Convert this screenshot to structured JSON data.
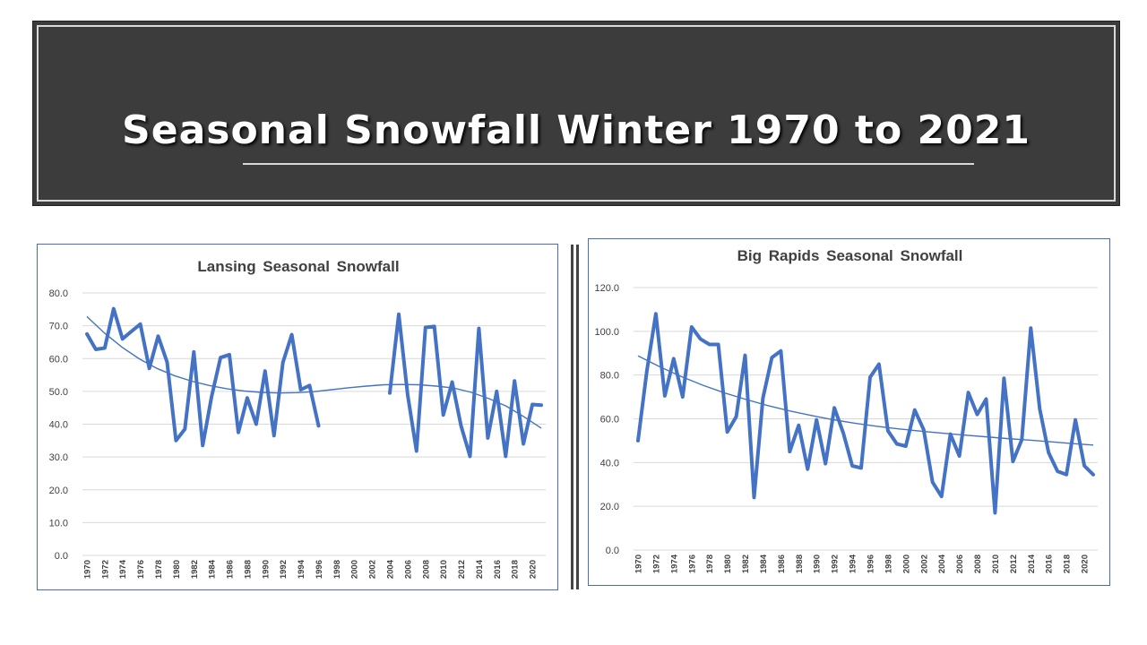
{
  "banner": {
    "title": "Seasonal Snowfall Winter 1970 to 2021"
  },
  "colors": {
    "series": "#4472c4",
    "trend": "#4472c4",
    "grid": "#d9d9d9",
    "banner_bg": "#3c3c3c"
  },
  "chart_data": [
    {
      "type": "line",
      "title": "Lansing Seasonal Snowfall",
      "xlabel": "",
      "ylabel": "",
      "ylim": [
        0,
        80
      ],
      "yticks": [
        "0.0",
        "10.0",
        "20.0",
        "30.0",
        "40.0",
        "50.0",
        "60.0",
        "70.0",
        "80.0"
      ],
      "xtick_labels": [
        "1970",
        "1972",
        "1974",
        "1976",
        "1978",
        "1980",
        "1982",
        "1984",
        "1986",
        "1988",
        "1990",
        "1992",
        "1994",
        "1996",
        "1998",
        "2000",
        "2002",
        "2004",
        "2006",
        "2008",
        "2010",
        "2012",
        "2014",
        "2016",
        "2018",
        "2020"
      ],
      "x": [
        1970,
        1971,
        1972,
        1973,
        1974,
        1975,
        1976,
        1977,
        1978,
        1979,
        1980,
        1981,
        1982,
        1983,
        1984,
        1985,
        1986,
        1987,
        1988,
        1989,
        1990,
        1991,
        1992,
        1993,
        1994,
        1995,
        1996,
        1997,
        1998,
        1999,
        2000,
        2001,
        2002,
        2003,
        2004,
        2005,
        2006,
        2007,
        2008,
        2009,
        2010,
        2011,
        2012,
        2013,
        2014,
        2015,
        2016,
        2017,
        2018,
        2019,
        2020,
        2021
      ],
      "values": [
        67.5,
        62.8,
        63.2,
        75.2,
        66.0,
        68.3,
        70.5,
        57.0,
        66.8,
        58.9,
        35.0,
        38.5,
        62.0,
        33.5,
        48.5,
        60.3,
        61.2,
        37.5,
        48.0,
        40.0,
        56.2,
        36.5,
        58.8,
        67.3,
        50.5,
        51.8,
        39.5,
        null,
        null,
        null,
        null,
        null,
        null,
        null,
        49.5,
        73.5,
        49.0,
        31.8,
        69.5,
        69.8,
        42.8,
        52.8,
        39.5,
        30.2,
        69.2,
        35.8,
        50.0,
        30.2,
        53.2,
        34.0,
        46.0,
        45.8
      ],
      "trend": [
        72.8,
        67.8,
        63.5,
        59.9,
        57.0,
        54.8,
        53.1,
        51.8,
        50.8,
        50.1,
        49.7,
        49.5,
        49.6,
        49.9,
        50.5,
        51.1,
        51.6,
        52.0,
        52.1,
        52.0,
        51.6,
        51.0,
        49.7,
        47.8,
        45.5,
        42.3,
        38.8
      ],
      "grid": true,
      "legend": "none"
    },
    {
      "type": "line",
      "title": "Big Rapids Seasonal Snowfall",
      "xlabel": "",
      "ylabel": "",
      "ylim": [
        0,
        120
      ],
      "yticks": [
        "0.0",
        "20.0",
        "40.0",
        "60.0",
        "80.0",
        "100.0",
        "120.0"
      ],
      "xtick_labels": [
        "1970",
        "1972",
        "1974",
        "1976",
        "1978",
        "1980",
        "1982",
        "1984",
        "1986",
        "1988",
        "1990",
        "1992",
        "1994",
        "1996",
        "1998",
        "2000",
        "2002",
        "2004",
        "2006",
        "2008",
        "2010",
        "2012",
        "2014",
        "2016",
        "2018",
        "2020"
      ],
      "x": [
        1970,
        1971,
        1972,
        1973,
        1974,
        1975,
        1976,
        1977,
        1978,
        1979,
        1980,
        1981,
        1982,
        1983,
        1984,
        1985,
        1986,
        1987,
        1988,
        1989,
        1990,
        1991,
        1992,
        1993,
        1994,
        1995,
        1996,
        1997,
        1998,
        1999,
        2000,
        2001,
        2002,
        2003,
        2004,
        2005,
        2006,
        2007,
        2008,
        2009,
        2010,
        2011,
        2012,
        2013,
        2014,
        2015,
        2016,
        2017,
        2018,
        2019,
        2020,
        2021
      ],
      "values": [
        50.0,
        82.0,
        108.0,
        70.5,
        87.5,
        70.0,
        102.0,
        96.5,
        94.0,
        94.0,
        54.0,
        61.0,
        89.0,
        24.0,
        69.5,
        88.0,
        91.0,
        45.0,
        57.0,
        37.0,
        59.5,
        39.5,
        65.0,
        53.5,
        38.5,
        37.5,
        79.0,
        85.0,
        54.5,
        48.5,
        47.5,
        64.0,
        55.0,
        31.0,
        24.5,
        53.0,
        43.0,
        72.0,
        62.0,
        69.0,
        17.0,
        78.5,
        40.5,
        50.5,
        101.5,
        64.5,
        44.5,
        36.0,
        34.5,
        59.5,
        38.5,
        34.5
      ],
      "trend": [
        88.8,
        83.8,
        79.3,
        75.3,
        71.8,
        68.8,
        66.0,
        63.6,
        61.5,
        59.6,
        58.0,
        56.6,
        55.4,
        54.4,
        53.5,
        52.6,
        51.8,
        51.0,
        50.3,
        49.5,
        48.7,
        48.0
      ],
      "grid": true,
      "legend": "none"
    }
  ]
}
